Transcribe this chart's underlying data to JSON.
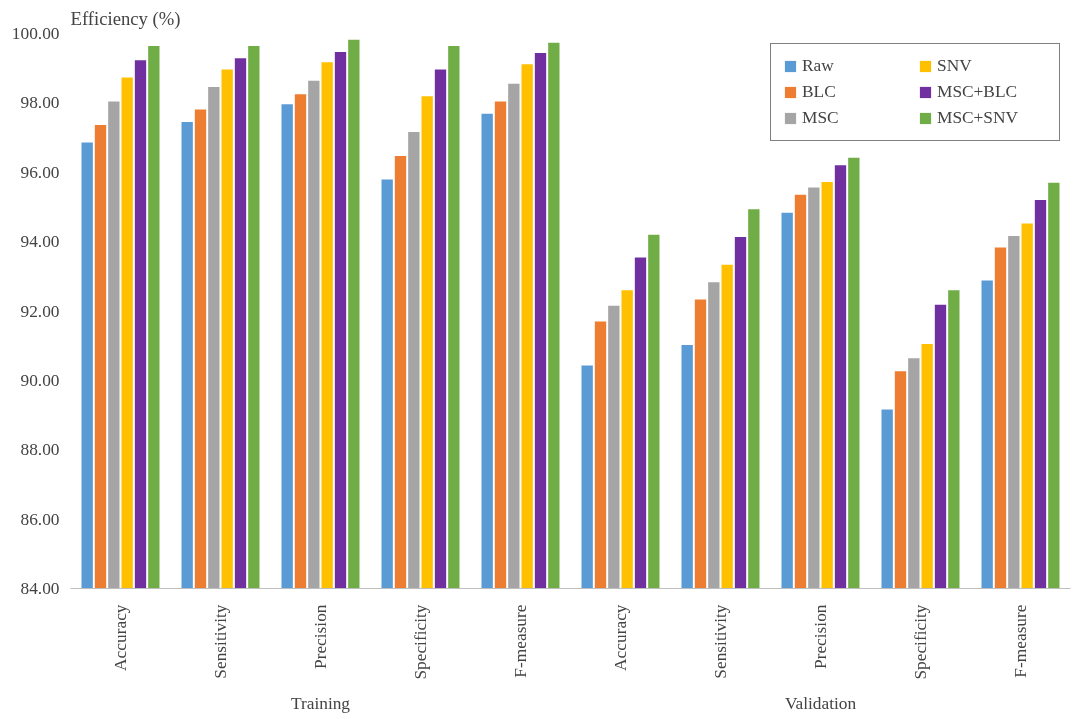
{
  "chart_data": {
    "type": "bar",
    "ylabel": "Efficiency (%)",
    "categories": [
      "Accuracy",
      "Sensitivity",
      "Precision",
      "Specificity",
      "F-measure",
      "Accuracy",
      "Sensitivity",
      "Precision",
      "Specificity",
      "F-measure"
    ],
    "annotations": [
      "Training",
      "Validation"
    ],
    "series": [
      {
        "name": "Raw",
        "color": "#5b9bd5",
        "values": [
          96.86,
          97.45,
          97.96,
          95.79,
          97.69,
          90.43,
          91.02,
          94.83,
          89.16,
          92.88
        ]
      },
      {
        "name": "BLC",
        "color": "#ed7d31",
        "values": [
          97.36,
          97.81,
          98.25,
          96.47,
          98.04,
          91.7,
          92.33,
          95.35,
          90.26,
          93.83
        ]
      },
      {
        "name": "MSC",
        "color": "#a5a5a5",
        "values": [
          98.04,
          98.46,
          98.64,
          97.16,
          98.55,
          92.15,
          92.83,
          95.56,
          90.64,
          94.16
        ]
      },
      {
        "name": "SNV",
        "color": "#ffc000",
        "values": [
          98.73,
          98.96,
          99.17,
          98.19,
          99.11,
          92.6,
          93.33,
          95.72,
          91.05,
          94.52
        ]
      },
      {
        "name": "MSC+BLC",
        "color": "#7030a0",
        "values": [
          99.23,
          99.29,
          99.47,
          98.96,
          99.44,
          93.54,
          94.13,
          96.2,
          92.18,
          95.2
        ]
      },
      {
        "name": "MSC+SNV",
        "color": "#70ad47",
        "values": [
          99.64,
          99.64,
          99.82,
          99.64,
          99.73,
          94.2,
          94.93,
          96.42,
          92.6,
          95.7
        ]
      }
    ],
    "ylim": [
      84,
      100
    ],
    "yticks": [
      {
        "value": 84,
        "label": "84.00"
      },
      {
        "value": 86,
        "label": "86.00"
      },
      {
        "value": 88,
        "label": "88.00"
      },
      {
        "value": 90,
        "label": "90.00"
      },
      {
        "value": 92,
        "label": "92.00"
      },
      {
        "value": 94,
        "label": "94.00"
      },
      {
        "value": 96,
        "label": "96.00"
      },
      {
        "value": 98,
        "label": "98.00"
      },
      {
        "value": 100,
        "label": "100.00"
      }
    ],
    "legend": "top right"
  }
}
